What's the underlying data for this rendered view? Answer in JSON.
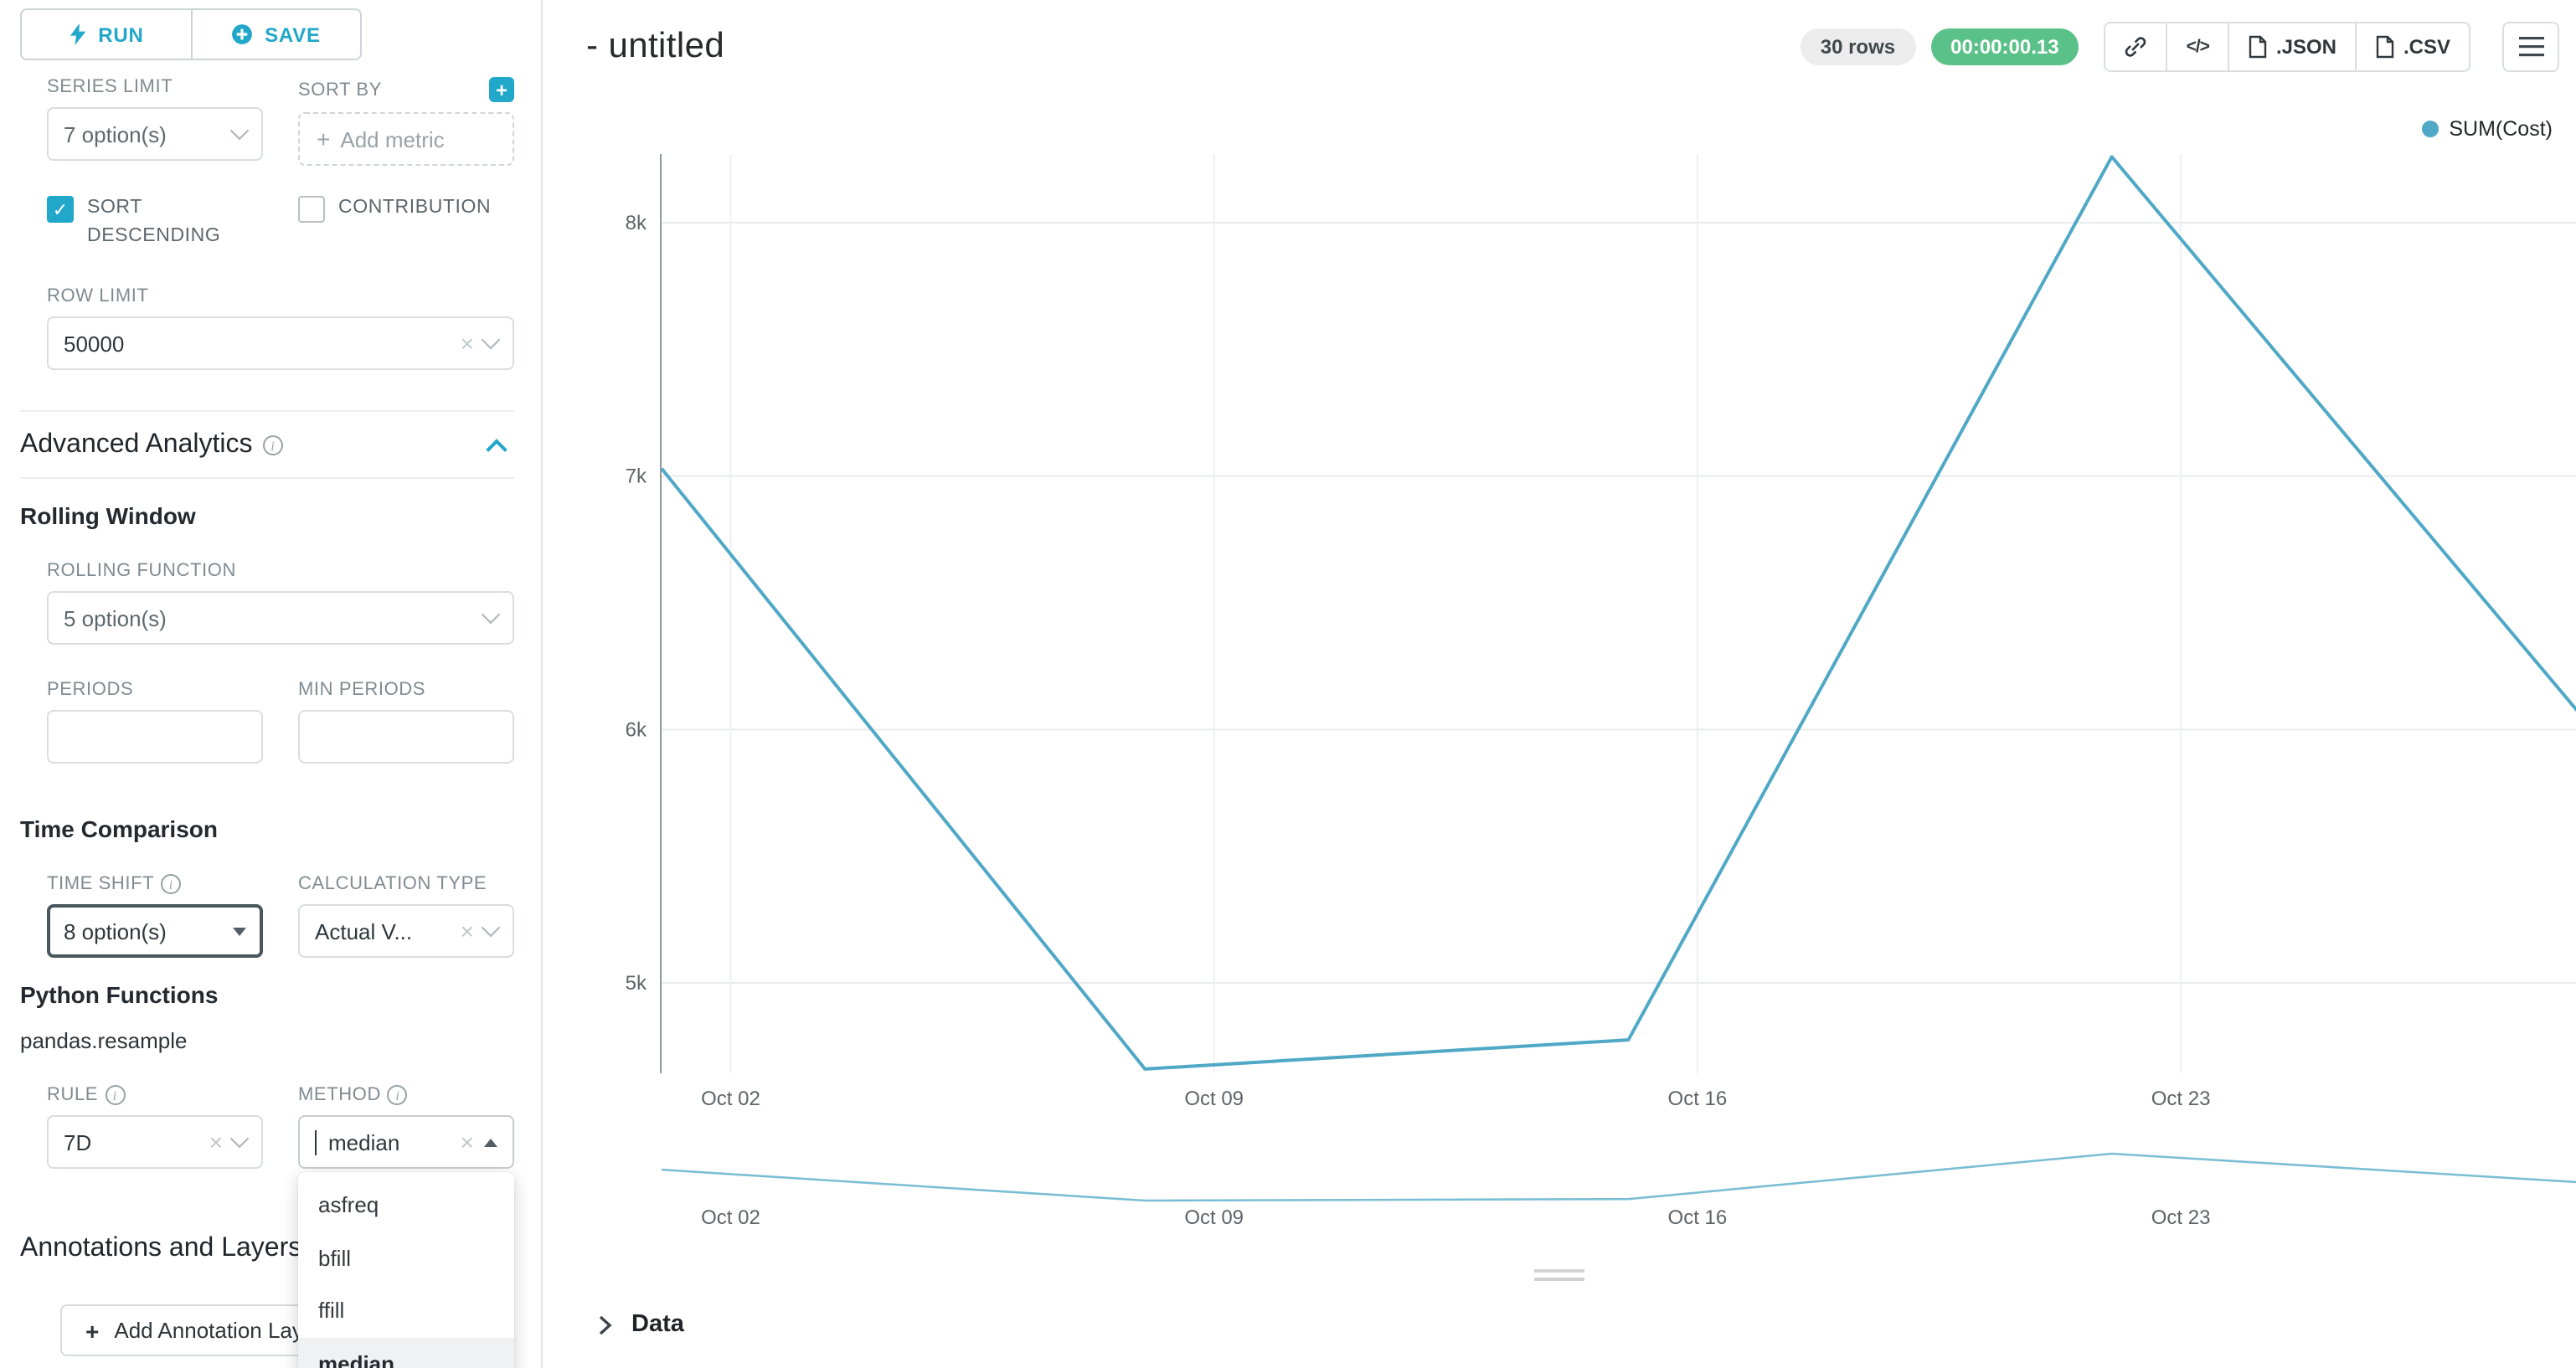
{
  "colors": {
    "accent": "#20a7c9",
    "timer_green": "#5ac189",
    "series": "#4fa8c6"
  },
  "sidebar": {
    "run_button": "RUN",
    "save_button": "SAVE",
    "series_limit": {
      "label": "SERIES LIMIT",
      "value": "7 option(s)"
    },
    "sort_by": {
      "label": "SORT BY",
      "placeholder": "Add metric"
    },
    "sort_descending": {
      "label": "SORT DESCENDING",
      "checked": true
    },
    "contribution": {
      "label": "CONTRIBUTION",
      "checked": false
    },
    "row_limit": {
      "label": "ROW LIMIT",
      "value": "50000"
    },
    "advanced_analytics_title": "Advanced Analytics",
    "rolling_window_title": "Rolling Window",
    "rolling_function": {
      "label": "ROLLING FUNCTION",
      "value": "5 option(s)"
    },
    "periods": {
      "label": "PERIODS",
      "value": ""
    },
    "min_periods": {
      "label": "MIN PERIODS",
      "value": ""
    },
    "time_comparison_title": "Time Comparison",
    "time_shift": {
      "label": "TIME SHIFT",
      "value": "8 option(s)"
    },
    "calculation_type": {
      "label": "CALCULATION TYPE",
      "value": "Actual V..."
    },
    "python_functions_title": "Python Functions",
    "pandas_resample_label": "pandas.resample",
    "rule": {
      "label": "RULE",
      "value": "7D"
    },
    "method": {
      "label": "METHOD",
      "value": "median",
      "options": [
        "asfreq",
        "bfill",
        "ffill",
        "median"
      ],
      "selected_option": "median"
    },
    "annotations_title": "Annotations and Layers",
    "add_annotation_button": "Add Annotation Layer"
  },
  "header": {
    "title": "- untitled",
    "rows_badge": "30 rows",
    "timer_badge": "00:00:00.13",
    "json_button": ".JSON",
    "csv_button": ".CSV"
  },
  "chart_data": {
    "type": "line",
    "legend": [
      {
        "name": "SUM(Cost)",
        "color": "#4fa8c6"
      }
    ],
    "x_axis": {
      "unit": "days since Oct 01",
      "tick_days": [
        1,
        8,
        15,
        22
      ],
      "tick_labels": [
        "Oct 02",
        "Oct 09",
        "Oct 16",
        "Oct 23"
      ]
    },
    "y_axis": {
      "tick_values": [
        8000,
        7000,
        6000,
        5000
      ],
      "tick_labels": [
        "8k",
        "7k",
        "6k",
        "5k"
      ]
    },
    "series": [
      {
        "name": "SUM(Cost)",
        "x_days": [
          0,
          7,
          14,
          21,
          28
        ],
        "values": [
          7030,
          4660,
          4775,
          8260,
          5990
        ]
      }
    ],
    "mini_chart": {
      "tick_labels": [
        "Oct 02",
        "Oct 09",
        "Oct 16",
        "Oct 23"
      ]
    },
    "grid": true,
    "legend_position": "top-right"
  },
  "data_panel": {
    "label": "Data"
  }
}
